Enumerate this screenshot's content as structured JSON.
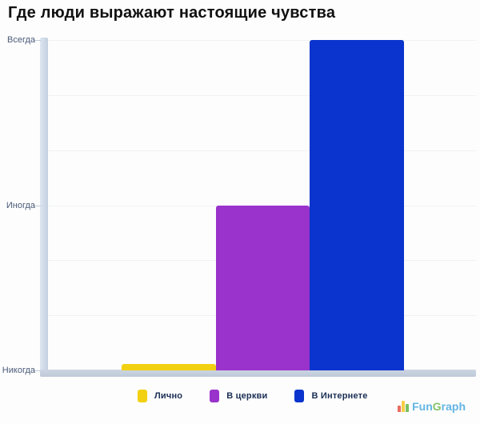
{
  "title": "Где люди выражают настоящие чувства",
  "chart_data": {
    "type": "bar",
    "title": "Где люди выражают настоящие чувства",
    "categories": [
      "Лично",
      "В церкви",
      "В Интернете"
    ],
    "values": [
      0.04,
      1,
      2
    ],
    "bar_colors": [
      "#f1d111",
      "#9933cb",
      "#0a34cd"
    ],
    "y_tick_labels": [
      "Всегда",
      "Иногда",
      "Никогда"
    ],
    "y_tick_values": [
      2,
      1,
      0
    ],
    "ylim": [
      0,
      2
    ],
    "xlabel": "",
    "ylabel": "",
    "grid": true,
    "minor_gridlines_per_interval": 3,
    "legend_position": "bottom",
    "axis_color": "#c3cfe0"
  },
  "legend": {
    "items": [
      {
        "label": "Лично",
        "color": "#f1d111"
      },
      {
        "label": "В церкви",
        "color": "#9933cb"
      },
      {
        "label": "В Интернете",
        "color": "#0a34cd"
      }
    ]
  },
  "watermark": {
    "fun": "Fun",
    "g": "G",
    "raph": "raph"
  }
}
